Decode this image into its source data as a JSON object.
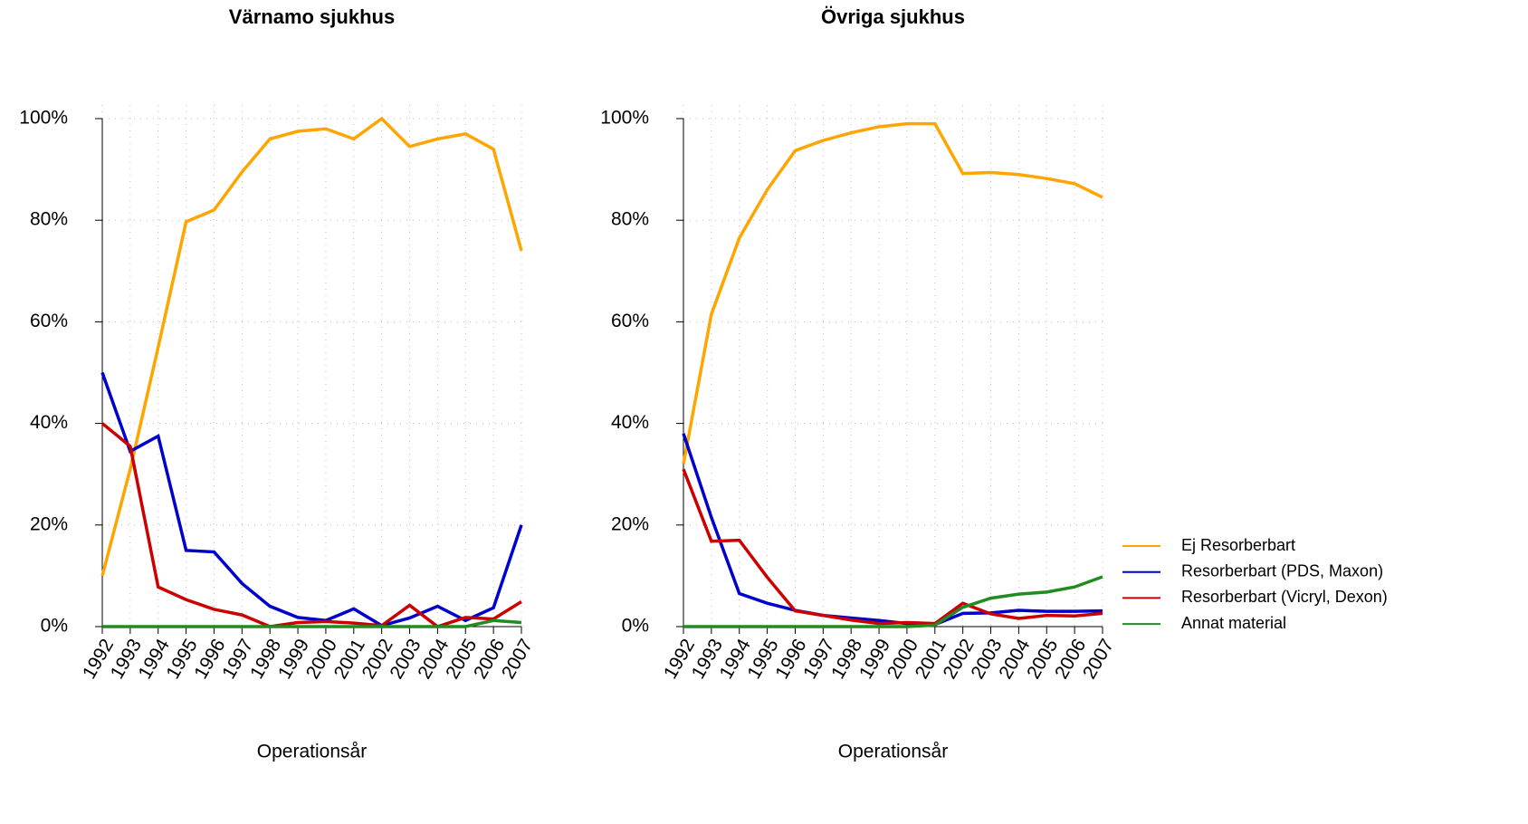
{
  "chart_data": [
    {
      "type": "line",
      "title": "Värnamo sjukhus",
      "x_label": "Operationsår",
      "categories": [
        "1992",
        "1993",
        "1994",
        "1995",
        "1996",
        "1997",
        "1998",
        "1999",
        "2000",
        "2001",
        "2002",
        "2003",
        "2004",
        "2005",
        "2006",
        "2007"
      ],
      "series": [
        {
          "color": "#FFA500",
          "values": [
            10,
            31,
            55,
            79.7,
            82,
            89.5,
            96,
            97.5,
            98,
            96,
            100,
            94.5,
            96,
            97,
            94,
            74
          ]
        },
        {
          "color": "#0000CD",
          "values": [
            50,
            34.5,
            37.5,
            15,
            14.7,
            8.5,
            4,
            1.8,
            1.2,
            3.5,
            0.2,
            1.7,
            4,
            1.2,
            3.7,
            20
          ]
        },
        {
          "color": "#CD0000",
          "values": [
            40,
            35.5,
            7.8,
            5.3,
            3.4,
            2.3,
            0,
            0.8,
            1,
            0.7,
            0.2,
            4.2,
            0,
            1.8,
            1.5,
            4.9
          ]
        },
        {
          "color": "#228B22",
          "values": [
            0,
            0,
            0,
            0,
            0,
            0,
            0,
            0,
            0,
            0,
            0,
            0,
            0,
            0,
            1.2,
            0.8
          ]
        }
      ],
      "ylim": [
        0,
        100
      ],
      "yticks": [
        {
          "value": 0,
          "label": "0%"
        },
        {
          "value": 20,
          "label": "20%"
        },
        {
          "value": 40,
          "label": "40%"
        },
        {
          "value": 60,
          "label": "60%"
        },
        {
          "value": 80,
          "label": "80%"
        },
        {
          "value": 100,
          "label": "100%"
        }
      ],
      "grid": true
    },
    {
      "type": "line",
      "title": "Övriga sjukhus",
      "x_label": "Operationsår",
      "categories": [
        "1992",
        "1993",
        "1994",
        "1995",
        "1996",
        "1997",
        "1998",
        "1999",
        "2000",
        "2001",
        "2002",
        "2003",
        "2004",
        "2005",
        "2006",
        "2007"
      ],
      "series": [
        {
          "name": "Ej Resorberbart",
          "color": "#FFA500",
          "values": [
            32,
            61.5,
            76.5,
            86,
            93.7,
            95.7,
            97.2,
            98.4,
            99,
            99,
            89.2,
            89.4,
            89,
            88.2,
            87.2,
            84.5
          ]
        },
        {
          "name": "Resorberbart (PDS, Maxon)",
          "color": "#0000CD",
          "values": [
            38,
            21.5,
            6.5,
            4.6,
            3.2,
            2.2,
            1.7,
            1.2,
            0.6,
            0.4,
            2.6,
            2.7,
            3.2,
            3.0,
            3.0,
            3.1
          ]
        },
        {
          "name": "Resorberbart (Vicryl, Dexon)",
          "color": "#CD0000",
          "values": [
            31,
            16.8,
            17,
            9.7,
            3.1,
            2.2,
            1.3,
            0.6,
            0.8,
            0.6,
            4.6,
            2.5,
            1.6,
            2.2,
            2.1,
            2.6
          ]
        },
        {
          "name": "Annat material",
          "color": "#228B22",
          "values": [
            0,
            0,
            0,
            0,
            0,
            0,
            0,
            0,
            0,
            0.3,
            3.8,
            5.6,
            6.4,
            6.8,
            7.8,
            9.8
          ]
        }
      ],
      "ylim": [
        0,
        100
      ],
      "yticks": [
        {
          "value": 0,
          "label": "0%"
        },
        {
          "value": 20,
          "label": "20%"
        },
        {
          "value": 40,
          "label": "40%"
        },
        {
          "value": 60,
          "label": "60%"
        },
        {
          "value": 80,
          "label": "80%"
        },
        {
          "value": 100,
          "label": "100%"
        }
      ],
      "grid": true,
      "legend": "right"
    }
  ]
}
